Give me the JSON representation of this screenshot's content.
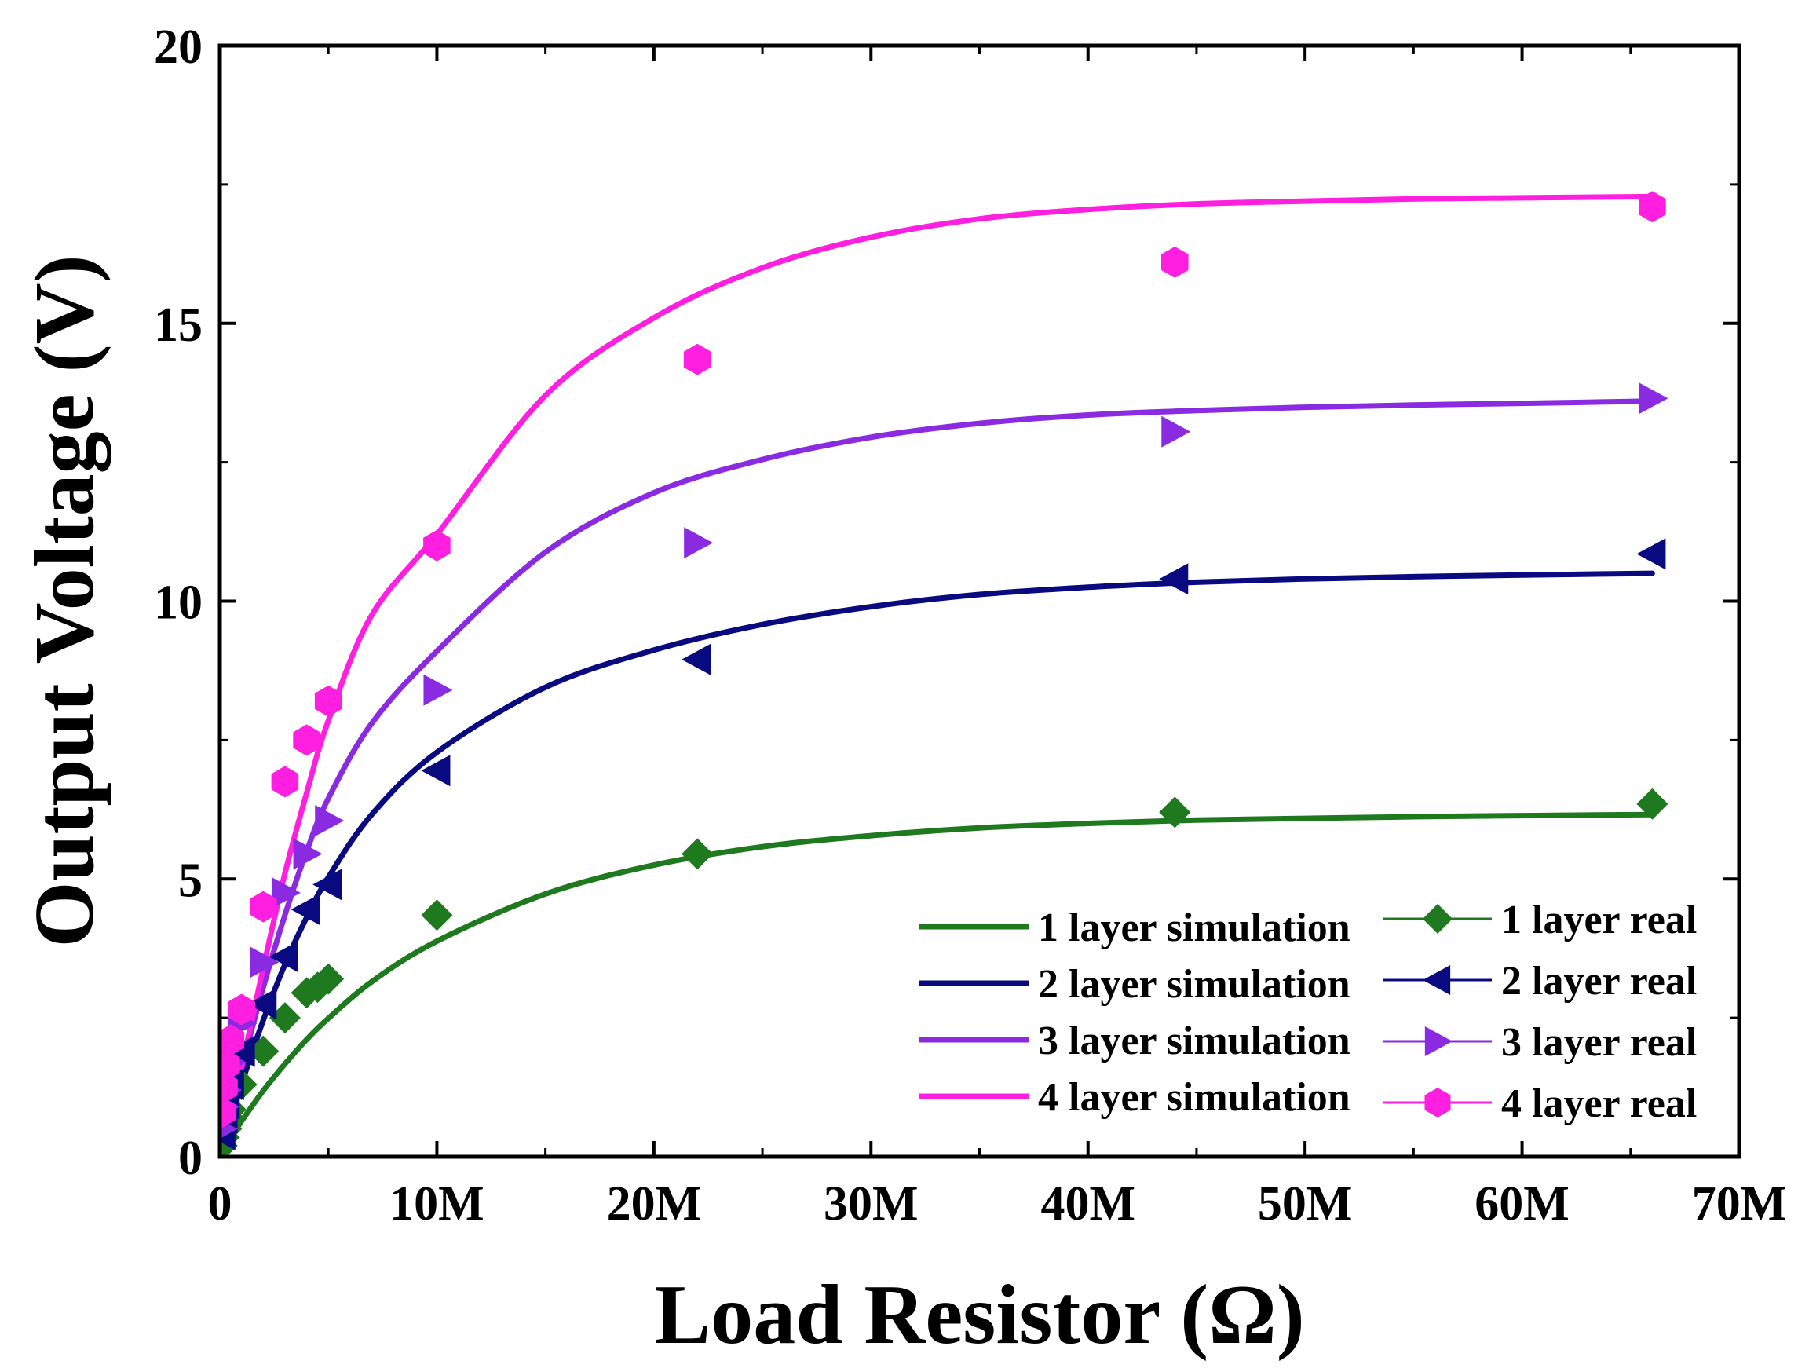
{
  "chart_data": {
    "type": "line",
    "title": "",
    "xlabel": "Load Resistor (Ω)",
    "ylabel": "Output Voltage (V)",
    "xlim": [
      0,
      70000000
    ],
    "ylim": [
      0,
      20
    ],
    "grid": false,
    "legend_position": "bottom-right",
    "x_ticks": [
      {
        "value": 0,
        "label": "0"
      },
      {
        "value": 10000000,
        "label": "10M"
      },
      {
        "value": 20000000,
        "label": "20M"
      },
      {
        "value": 30000000,
        "label": "30M"
      },
      {
        "value": 40000000,
        "label": "40M"
      },
      {
        "value": 50000000,
        "label": "50M"
      },
      {
        "value": 60000000,
        "label": "60M"
      },
      {
        "value": 70000000,
        "label": "70M"
      }
    ],
    "y_ticks": [
      {
        "value": 0,
        "label": "0"
      },
      {
        "value": 5,
        "label": "5"
      },
      {
        "value": 10,
        "label": "10"
      },
      {
        "value": 15,
        "label": "15"
      },
      {
        "value": 20,
        "label": "20"
      }
    ],
    "series": [
      {
        "name": "1 layer simulation",
        "kind": "line",
        "color": "#1f7a1f",
        "x": [
          0,
          500000,
          1000000,
          2000000,
          3000000,
          4000000,
          5000000,
          7000000,
          10000000,
          15000000,
          20000000,
          25000000,
          30000000,
          35000000,
          40000000,
          45000000,
          50000000,
          55000000,
          60000000,
          66000000
        ],
        "values": [
          0,
          0.33,
          0.64,
          1.19,
          1.67,
          2.11,
          2.49,
          3.15,
          3.88,
          4.73,
          5.25,
          5.58,
          5.78,
          5.92,
          6.0,
          6.06,
          6.09,
          6.12,
          6.14,
          6.16
        ]
      },
      {
        "name": "2 layer simulation",
        "kind": "line",
        "color": "#0a0a80",
        "x": [
          0,
          500000,
          1000000,
          2000000,
          3000000,
          4000000,
          5000000,
          7000000,
          10000000,
          15000000,
          20000000,
          25000000,
          30000000,
          35000000,
          40000000,
          45000000,
          50000000,
          55000000,
          60000000,
          66000000
        ],
        "values": [
          0,
          0.67,
          1.31,
          2.46,
          3.46,
          4.31,
          5.03,
          6.16,
          7.28,
          8.45,
          9.12,
          9.58,
          9.9,
          10.12,
          10.25,
          10.34,
          10.4,
          10.44,
          10.47,
          10.5
        ]
      },
      {
        "name": "3 layer simulation",
        "kind": "line",
        "color": "#8a2be2",
        "x": [
          0,
          500000,
          1000000,
          2000000,
          3000000,
          4000000,
          5000000,
          7000000,
          10000000,
          15000000,
          20000000,
          25000000,
          30000000,
          35000000,
          40000000,
          45000000,
          50000000,
          55000000,
          60000000,
          66000000
        ],
        "values": [
          0,
          0.82,
          1.6,
          3.05,
          4.35,
          5.5,
          6.45,
          7.8,
          9.1,
          10.88,
          11.95,
          12.55,
          12.95,
          13.2,
          13.35,
          13.43,
          13.49,
          13.53,
          13.56,
          13.6
        ]
      },
      {
        "name": "4 layer simulation",
        "kind": "line",
        "color": "#ff1fe0",
        "x": [
          0,
          500000,
          1000000,
          2000000,
          3000000,
          4000000,
          5000000,
          7000000,
          10000000,
          15000000,
          20000000,
          25000000,
          30000000,
          35000000,
          40000000,
          45000000,
          50000000,
          55000000,
          60000000,
          66000000
        ],
        "values": [
          0,
          0.75,
          1.6,
          3.4,
          5.1,
          6.55,
          7.85,
          9.75,
          11.2,
          13.7,
          15.1,
          16.0,
          16.55,
          16.88,
          17.05,
          17.15,
          17.2,
          17.24,
          17.26,
          17.28
        ]
      },
      {
        "name": "1 layer real",
        "kind": "marker",
        "marker": "diamond",
        "color": "#1f7a1f",
        "x": [
          100000,
          200000,
          300000,
          400000,
          500000,
          1000000,
          2000000,
          3000000,
          4000000,
          4500000,
          5000000,
          10000000,
          22000000,
          44000000,
          66000000
        ],
        "values": [
          0.2,
          0.35,
          0.5,
          0.7,
          0.85,
          1.3,
          1.9,
          2.5,
          2.95,
          3.05,
          3.2,
          4.35,
          5.45,
          6.2,
          6.35
        ]
      },
      {
        "name": "2 layer real",
        "kind": "marker",
        "marker": "triangle-left",
        "color": "#0a0a80",
        "x": [
          100000,
          200000,
          300000,
          500000,
          1000000,
          2000000,
          3000000,
          4000000,
          5000000,
          10000000,
          22000000,
          44000000,
          66000000
        ],
        "values": [
          0.4,
          0.7,
          0.95,
          1.3,
          1.9,
          2.75,
          3.6,
          4.45,
          4.9,
          6.95,
          8.95,
          10.4,
          10.85
        ]
      },
      {
        "name": "3 layer real",
        "kind": "marker",
        "marker": "triangle-right",
        "color": "#8a2be2",
        "x": [
          100000,
          200000,
          300000,
          500000,
          1000000,
          2000000,
          3000000,
          4000000,
          5000000,
          10000000,
          22000000,
          44000000,
          66000000
        ],
        "values": [
          0.5,
          0.9,
          1.2,
          1.7,
          2.4,
          3.5,
          4.75,
          5.45,
          6.05,
          8.4,
          11.05,
          13.05,
          13.65
        ]
      },
      {
        "name": "4 layer real",
        "kind": "marker",
        "marker": "hexagon",
        "color": "#ff1fe0",
        "x": [
          100000,
          200000,
          300000,
          500000,
          1000000,
          2000000,
          3000000,
          4000000,
          5000000,
          10000000,
          22000000,
          44000000,
          66000000
        ],
        "values": [
          0.8,
          1.25,
          1.65,
          2.1,
          2.65,
          4.5,
          6.75,
          7.5,
          8.2,
          11.0,
          14.35,
          16.1,
          17.1
        ]
      }
    ]
  }
}
